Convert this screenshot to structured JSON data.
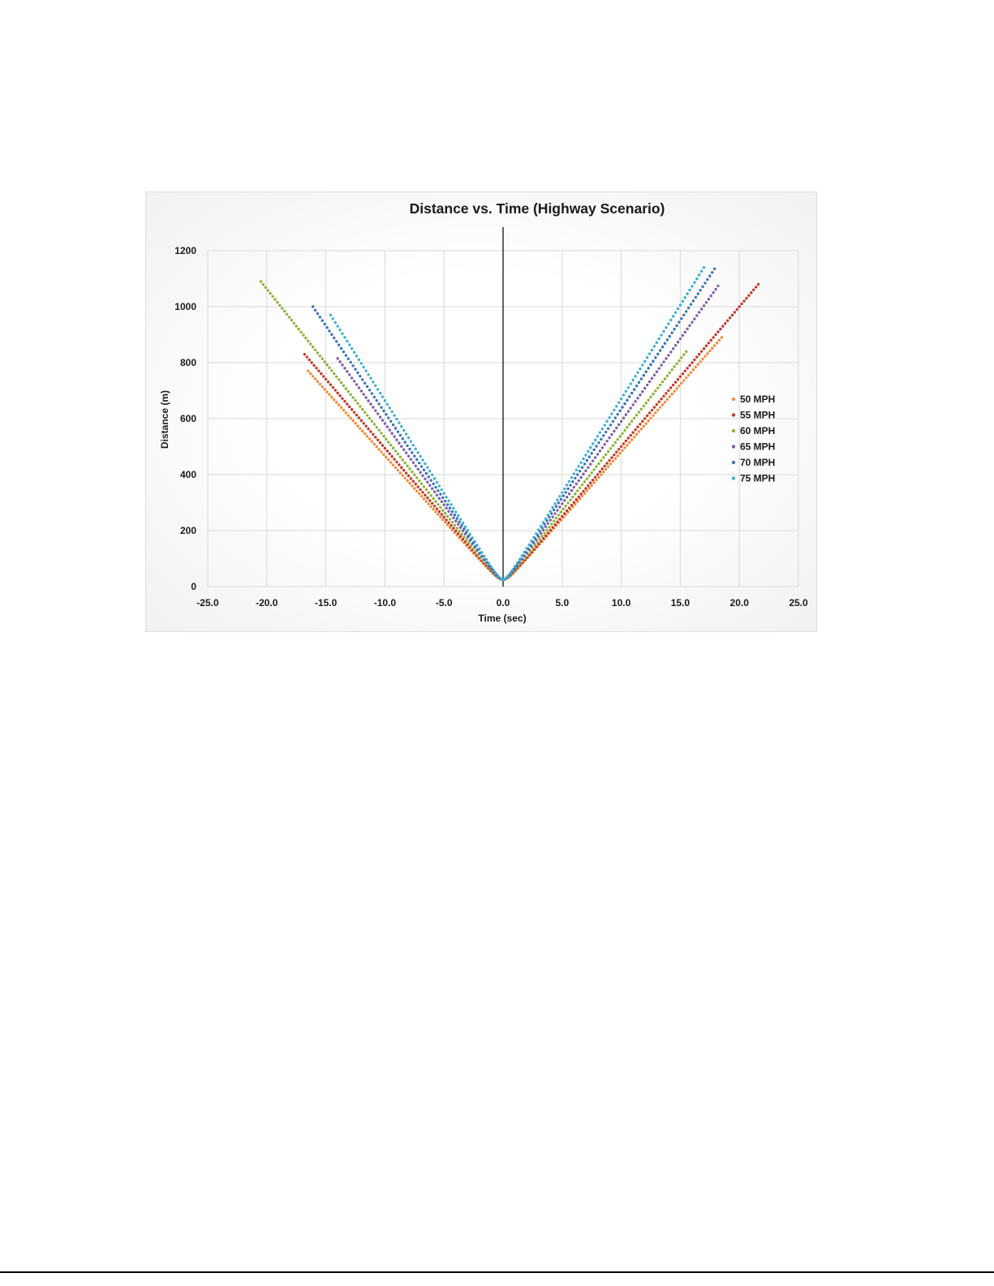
{
  "chart_data": {
    "type": "scatter",
    "title": "Distance vs. Time (Highway Scenario)",
    "xlabel": "Time (sec)",
    "ylabel": "Distance (m)",
    "xlim": [
      -25,
      25
    ],
    "ylim": [
      0,
      1200
    ],
    "xticks": [
      "-25.0",
      "-20.0",
      "-15.0",
      "-10.0",
      "-5.0",
      "0.0",
      "5.0",
      "10.0",
      "15.0",
      "20.0",
      "25.0"
    ],
    "yticks": [
      "0",
      "200",
      "400",
      "600",
      "800",
      "1000",
      "1200"
    ],
    "grid": true,
    "vertical_reference_line_x": 0,
    "legend_position": "right",
    "series": [
      {
        "name": "50 MPH",
        "color": "#f28c3a",
        "min_distance": 25,
        "x_start": -16.5,
        "y_start": 770,
        "x_end": 18.5,
        "y_end": 890
      },
      {
        "name": "55 MPH",
        "color": "#c0392b",
        "min_distance": 25,
        "x_start": -16.8,
        "y_start": 830,
        "x_end": 21.7,
        "y_end": 1085
      },
      {
        "name": "60 MPH",
        "color": "#8db33a",
        "min_distance": 25,
        "x_start": -20.5,
        "y_start": 1090,
        "x_end": 15.6,
        "y_end": 845
      },
      {
        "name": "65 MPH",
        "color": "#7d5fa8",
        "min_distance": 25,
        "x_start": -14.0,
        "y_start": 815,
        "x_end": 18.3,
        "y_end": 1080
      },
      {
        "name": "70 MPH",
        "color": "#3b74b8",
        "min_distance": 25,
        "x_start": -16.1,
        "y_start": 1000,
        "x_end": 17.9,
        "y_end": 1135
      },
      {
        "name": "75 MPH",
        "color": "#3fb0cf",
        "min_distance": 25,
        "x_start": -14.6,
        "y_start": 970,
        "x_end": 17.0,
        "y_end": 1140
      }
    ]
  }
}
